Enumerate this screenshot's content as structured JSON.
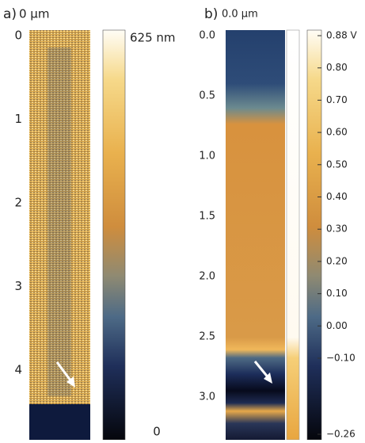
{
  "panels": [
    {
      "label": "a)",
      "origin_label": "0 µm",
      "axis_ticks": [
        "0",
        "1",
        "2",
        "3",
        "4"
      ],
      "colorbar_ticks": [
        "625 nm",
        "0"
      ]
    },
    {
      "label": "b)",
      "origin_label": "0.0 µm",
      "axis_ticks": [
        "0.0",
        "0.5",
        "1.0",
        "1.5",
        "2.0",
        "2.5",
        "3.0"
      ],
      "colorbar_ticks": [
        "0.88 V",
        "0.80",
        "0.70",
        "0.60",
        "0.50",
        "0.40",
        "0.30",
        "0.20",
        "0.10",
        "0.00",
        "−0.10",
        "−0.26"
      ]
    }
  ]
}
